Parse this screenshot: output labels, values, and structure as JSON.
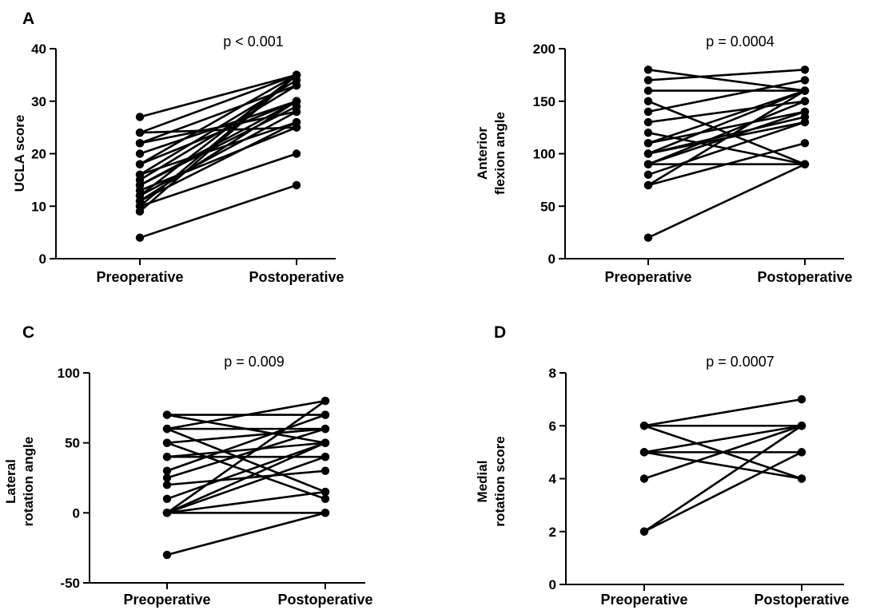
{
  "chart_data": [
    {
      "type": "line",
      "panel": "A",
      "annotation": "p < 0.001",
      "categories": [
        "Preoperative",
        "Postoperative"
      ],
      "ylabel": [
        "UCLA score"
      ],
      "ylim": [
        0,
        40
      ],
      "yticks": [
        0,
        10,
        20,
        30,
        40
      ],
      "ytick_labels": [
        "0",
        "10",
        "20",
        "30",
        "40"
      ],
      "grid": false,
      "series": [
        {
          "values": [
            27,
            35
          ]
        },
        {
          "values": [
            24,
            35
          ]
        },
        {
          "values": [
            24,
            25
          ]
        },
        {
          "values": [
            22,
            33
          ]
        },
        {
          "values": [
            22,
            28
          ]
        },
        {
          "values": [
            20,
            30
          ]
        },
        {
          "values": [
            18,
            35
          ]
        },
        {
          "values": [
            18,
            30
          ]
        },
        {
          "values": [
            16,
            26
          ]
        },
        {
          "values": [
            16,
            34
          ]
        },
        {
          "values": [
            15,
            33
          ]
        },
        {
          "values": [
            14,
            30
          ]
        },
        {
          "values": [
            14,
            29
          ]
        },
        {
          "values": [
            13,
            25
          ]
        },
        {
          "values": [
            12,
            28
          ]
        },
        {
          "values": [
            12,
            35
          ]
        },
        {
          "values": [
            11,
            30
          ]
        },
        {
          "values": [
            11,
            26
          ]
        },
        {
          "values": [
            10,
            20
          ]
        },
        {
          "values": [
            10,
            35
          ]
        },
        {
          "values": [
            9,
            35
          ]
        },
        {
          "values": [
            4,
            14
          ]
        }
      ]
    },
    {
      "type": "line",
      "panel": "B",
      "annotation": "p = 0.0004",
      "categories": [
        "Preoperative",
        "Postoperative"
      ],
      "ylabel": [
        "Anterior",
        "flexion angle"
      ],
      "ylim": [
        0,
        200
      ],
      "yticks": [
        0,
        50,
        100,
        150,
        200
      ],
      "ytick_labels": [
        "0",
        "50",
        "100",
        "150",
        "200"
      ],
      "grid": false,
      "series": [
        {
          "values": [
            180,
            160
          ]
        },
        {
          "values": [
            170,
            180
          ]
        },
        {
          "values": [
            160,
            160
          ]
        },
        {
          "values": [
            150,
            90
          ]
        },
        {
          "values": [
            140,
            170
          ]
        },
        {
          "values": [
            130,
            150
          ]
        },
        {
          "values": [
            120,
            90
          ]
        },
        {
          "values": [
            110,
            160
          ]
        },
        {
          "values": [
            110,
            140
          ]
        },
        {
          "values": [
            100,
            160
          ]
        },
        {
          "values": [
            100,
            135
          ]
        },
        {
          "values": [
            100,
            130
          ]
        },
        {
          "values": [
            90,
            140
          ]
        },
        {
          "values": [
            90,
            150
          ]
        },
        {
          "values": [
            90,
            90
          ]
        },
        {
          "values": [
            80,
            130
          ]
        },
        {
          "values": [
            70,
            110
          ]
        },
        {
          "values": [
            70,
            160
          ]
        },
        {
          "values": [
            20,
            90
          ]
        }
      ]
    },
    {
      "type": "line",
      "panel": "C",
      "annotation": "p = 0.009",
      "categories": [
        "Preoperative",
        "Postoperative"
      ],
      "ylabel": [
        "Lateral",
        "rotation angle"
      ],
      "ylim": [
        -50,
        100
      ],
      "yticks": [
        -50,
        0,
        50,
        100
      ],
      "ytick_labels": [
        "-50",
        "0",
        "50",
        "100"
      ],
      "grid": false,
      "series": [
        {
          "values": [
            70,
            70
          ]
        },
        {
          "values": [
            70,
            50
          ]
        },
        {
          "values": [
            60,
            80
          ]
        },
        {
          "values": [
            60,
            15
          ]
        },
        {
          "values": [
            60,
            60
          ]
        },
        {
          "values": [
            50,
            60
          ]
        },
        {
          "values": [
            50,
            10
          ]
        },
        {
          "values": [
            40,
            50
          ]
        },
        {
          "values": [
            40,
            40
          ]
        },
        {
          "values": [
            30,
            70
          ]
        },
        {
          "values": [
            25,
            60
          ]
        },
        {
          "values": [
            20,
            30
          ]
        },
        {
          "values": [
            10,
            50
          ]
        },
        {
          "values": [
            0,
            80
          ]
        },
        {
          "values": [
            0,
            50
          ]
        },
        {
          "values": [
            0,
            40
          ]
        },
        {
          "values": [
            0,
            15
          ]
        },
        {
          "values": [
            0,
            0
          ]
        },
        {
          "values": [
            -30,
            0
          ]
        }
      ]
    },
    {
      "type": "line",
      "panel": "D",
      "annotation": "p = 0.0007",
      "categories": [
        "Preoperative",
        "Postoperative"
      ],
      "ylabel": [
        "Medial",
        "rotation score"
      ],
      "ylim": [
        0,
        8
      ],
      "yticks": [
        0,
        2,
        4,
        6,
        8
      ],
      "ytick_labels": [
        "0",
        "2",
        "4",
        "6",
        "8"
      ],
      "grid": false,
      "series": [
        {
          "values": [
            6,
            7
          ]
        },
        {
          "values": [
            6,
            6
          ]
        },
        {
          "values": [
            6,
            4
          ]
        },
        {
          "values": [
            5,
            6
          ]
        },
        {
          "values": [
            5,
            5
          ]
        },
        {
          "values": [
            5,
            4
          ]
        },
        {
          "values": [
            4,
            6
          ]
        },
        {
          "values": [
            2,
            6
          ]
        },
        {
          "values": [
            2,
            5
          ]
        }
      ]
    }
  ]
}
